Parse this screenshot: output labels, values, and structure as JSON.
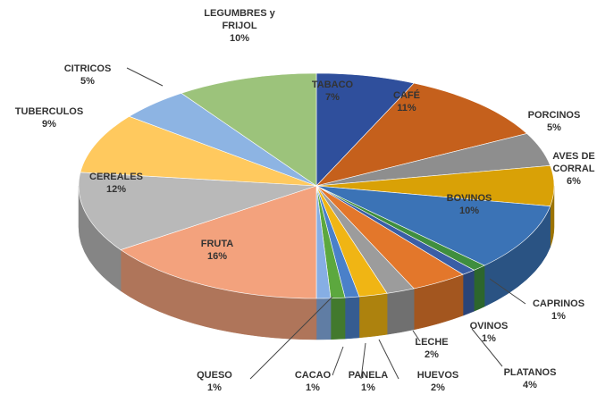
{
  "chart_data": {
    "type": "pie3d",
    "categories": [
      "TABACO",
      "CAFÉ",
      "PORCINOS",
      "AVES DE CORRAL",
      "BOVINOS",
      "CAPRINOS",
      "OVINOS",
      "PLATANOS",
      "LECHE",
      "HUEVOS",
      "PANELA",
      "CACAO",
      "QUESO",
      "FRUTA",
      "CEREALES",
      "TUBERCULOS",
      "CITRICOS",
      "LEGUMBRES y FRIJOL"
    ],
    "values": [
      7,
      11,
      5,
      6,
      10,
      1,
      1,
      4,
      2,
      2,
      1,
      1,
      1,
      16,
      12,
      9,
      5,
      10
    ],
    "value_labels": [
      "7%",
      "11%",
      "5%",
      "6%",
      "10%",
      "1%",
      "1%",
      "4%",
      "2%",
      "2%",
      "1%",
      "1%",
      "1%",
      "16%",
      "12%",
      "9%",
      "5%",
      "10%"
    ],
    "colors": [
      "#2f4f9c",
      "#c5601c",
      "#8e8e8e",
      "#d9a106",
      "#3b73b6",
      "#3f8e3f",
      "#3a5ea6",
      "#e3772b",
      "#9c9c9c",
      "#f0b514",
      "#4a80c9",
      "#5ca83e",
      "#86aee4",
      "#f3a27d",
      "#b9b9b9",
      "#ffc95e",
      "#8db4e3",
      "#9cc37b"
    ]
  }
}
